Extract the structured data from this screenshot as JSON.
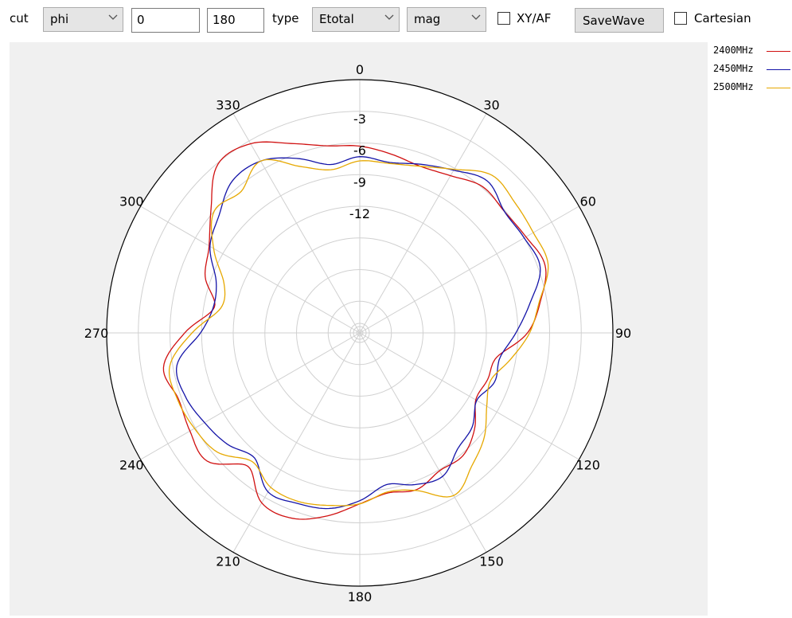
{
  "toolbar": {
    "cut_label": "cut",
    "cut_value": "phi",
    "range_start": "0",
    "range_end": "180",
    "type_label": "type",
    "type_value": "Etotal",
    "mode_value": "mag",
    "xyaf_label": "XY/AF",
    "savewave_label": "SaveWave",
    "cartesian_label": "Cartesian"
  },
  "colors": {
    "series_2400": "#d01010",
    "series_2450": "#1414a8",
    "series_2500": "#e6a800",
    "grid": "#d0d0d0",
    "plot_bg": "#f0f0f0"
  },
  "chart_data": {
    "type": "polar-line",
    "angle_ticks": [
      "0",
      "30",
      "60",
      "90",
      "120",
      "150",
      "180",
      "210",
      "240",
      "270",
      "300",
      "330"
    ],
    "radial_ticks": [
      {
        "value": -3,
        "label": "-3"
      },
      {
        "value": -6,
        "label": "-6"
      },
      {
        "value": -9,
        "label": "-9"
      },
      {
        "value": -12,
        "label": "-12"
      }
    ],
    "radial_range": [
      -24,
      0
    ],
    "grid": true,
    "legend_position": "top-right",
    "series": [
      {
        "name": "2400MHz",
        "angles": [
          0,
          10,
          20,
          30,
          40,
          50,
          60,
          70,
          80,
          90,
          100,
          110,
          120,
          130,
          140,
          150,
          160,
          170,
          180,
          190,
          200,
          210,
          220,
          230,
          240,
          250,
          260,
          270,
          280,
          290,
          300,
          310,
          320,
          330,
          340,
          350
        ],
        "values": [
          -6.3,
          -6.8,
          -7.2,
          -6.8,
          -5.9,
          -6.1,
          -5.8,
          -5.3,
          -6.6,
          -8.1,
          -10.8,
          -11.1,
          -11.3,
          -9.8,
          -8.8,
          -8.9,
          -8.2,
          -8.6,
          -7.8,
          -6.4,
          -5.3,
          -5.4,
          -7.5,
          -5.1,
          -5.4,
          -5.7,
          -5.1,
          -7.4,
          -10.0,
          -8.4,
          -7.5,
          -5.6,
          -3.1,
          -3.3,
          -4.9,
          -6.0
        ]
      },
      {
        "name": "2450MHz",
        "angles": [
          0,
          10,
          20,
          30,
          40,
          50,
          60,
          70,
          80,
          90,
          100,
          110,
          120,
          130,
          140,
          150,
          160,
          170,
          180,
          190,
          200,
          210,
          220,
          230,
          240,
          250,
          260,
          270,
          280,
          290,
          300,
          310,
          320,
          330,
          340,
          350
        ],
        "values": [
          -7.3,
          -7.6,
          -7.0,
          -6.2,
          -5.2,
          -6.1,
          -6.0,
          -5.8,
          -7.6,
          -9.2,
          -10.5,
          -10.4,
          -11.2,
          -10.1,
          -9.6,
          -8.3,
          -8.7,
          -9.4,
          -8.1,
          -7.1,
          -6.8,
          -6.6,
          -8.5,
          -7.6,
          -7.0,
          -6.4,
          -6.4,
          -8.9,
          -9.9,
          -9.5,
          -7.6,
          -6.6,
          -5.2,
          -5.2,
          -6.4,
          -7.8
        ]
      },
      {
        "name": "2500MHz",
        "angles": [
          0,
          10,
          20,
          30,
          40,
          50,
          60,
          70,
          80,
          90,
          100,
          110,
          120,
          130,
          140,
          150,
          160,
          170,
          180,
          190,
          200,
          210,
          220,
          230,
          240,
          250,
          260,
          270,
          280,
          290,
          300,
          310,
          320,
          330,
          340,
          350
        ],
        "values": [
          -7.7,
          -7.7,
          -7.2,
          -6.1,
          -4.5,
          -4.8,
          -5.0,
          -5.0,
          -6.7,
          -7.9,
          -9.5,
          -10.8,
          -10.1,
          -8.6,
          -7.5,
          -6.2,
          -8.1,
          -8.7,
          -7.8,
          -7.4,
          -7.0,
          -7.1,
          -8.1,
          -6.4,
          -5.9,
          -5.6,
          -5.7,
          -8.1,
          -10.6,
          -10.3,
          -8.0,
          -6.0,
          -6.5,
          -5.2,
          -7.2,
          -8.3
        ]
      }
    ]
  }
}
